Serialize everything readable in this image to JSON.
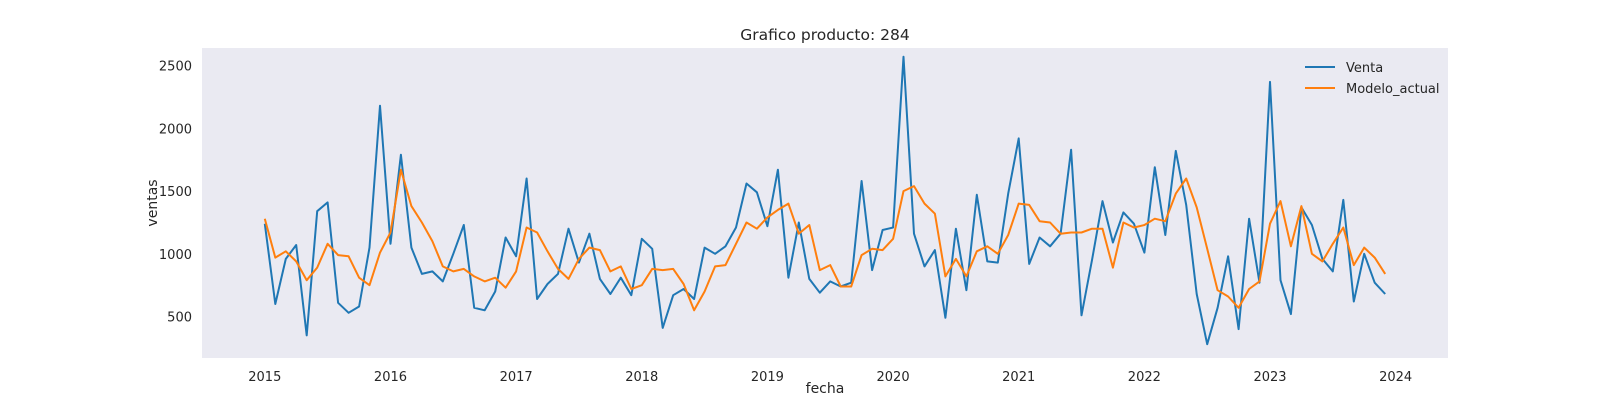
{
  "chart_data": {
    "type": "line",
    "title": "Grafico producto: 284",
    "xlabel": "fecha",
    "ylabel": "ventas",
    "x_start": "2015-01",
    "x_frequency": "monthly",
    "xlim": [
      "2014-07",
      "2024-06"
    ],
    "ylim": [
      170,
      2640
    ],
    "x_ticks": [
      "2015",
      "2016",
      "2017",
      "2018",
      "2019",
      "2020",
      "2021",
      "2022",
      "2023",
      "2024"
    ],
    "y_ticks": [
      500,
      1000,
      1500,
      2000,
      2500
    ],
    "grid": false,
    "legend_position": "top-right",
    "background": "#eaeaf2",
    "series": [
      {
        "name": "Venta",
        "color": "#1f77b4",
        "values": [
          1240,
          600,
          960,
          1070,
          350,
          1340,
          1410,
          610,
          530,
          580,
          1050,
          2180,
          1080,
          1790,
          1050,
          840,
          860,
          780,
          1000,
          1230,
          570,
          550,
          700,
          1130,
          980,
          1600,
          640,
          760,
          840,
          1200,
          930,
          1160,
          800,
          680,
          810,
          670,
          1120,
          1040,
          410,
          670,
          720,
          640,
          1050,
          1000,
          1060,
          1210,
          1560,
          1490,
          1220,
          1670,
          810,
          1250,
          800,
          690,
          780,
          740,
          770,
          1580,
          870,
          1190,
          1210,
          2570,
          1160,
          900,
          1030,
          490,
          1200,
          710,
          1470,
          940,
          930,
          1480,
          1920,
          920,
          1130,
          1060,
          1160,
          1830,
          510,
          950,
          1420,
          1090,
          1330,
          1240,
          1010,
          1690,
          1150,
          1820,
          1390,
          680,
          280,
          570,
          980,
          400,
          1280,
          770,
          2370,
          790,
          520,
          1370,
          1230,
          960,
          860,
          1430,
          620,
          1000,
          770,
          680
        ]
      },
      {
        "name": "Modelo_actual",
        "color": "#ff7f0e",
        "values": [
          1280,
          970,
          1020,
          940,
          790,
          890,
          1080,
          990,
          980,
          810,
          750,
          1010,
          1170,
          1670,
          1380,
          1250,
          1100,
          900,
          860,
          880,
          820,
          780,
          810,
          730,
          860,
          1210,
          1170,
          1020,
          880,
          800,
          960,
          1050,
          1030,
          860,
          900,
          720,
          750,
          880,
          870,
          880,
          760,
          550,
          700,
          900,
          910,
          1080,
          1250,
          1200,
          1290,
          1350,
          1400,
          1160,
          1230,
          870,
          910,
          740,
          740,
          990,
          1040,
          1030,
          1120,
          1500,
          1540,
          1400,
          1320,
          820,
          960,
          820,
          1020,
          1060,
          1000,
          1150,
          1400,
          1390,
          1260,
          1250,
          1160,
          1170,
          1170,
          1200,
          1200,
          890,
          1250,
          1210,
          1230,
          1280,
          1260,
          1480,
          1600,
          1370,
          1040,
          710,
          660,
          570,
          720,
          780,
          1240,
          1420,
          1060,
          1380,
          1000,
          940,
          1080,
          1210,
          910,
          1050,
          970,
          840
        ]
      }
    ]
  }
}
